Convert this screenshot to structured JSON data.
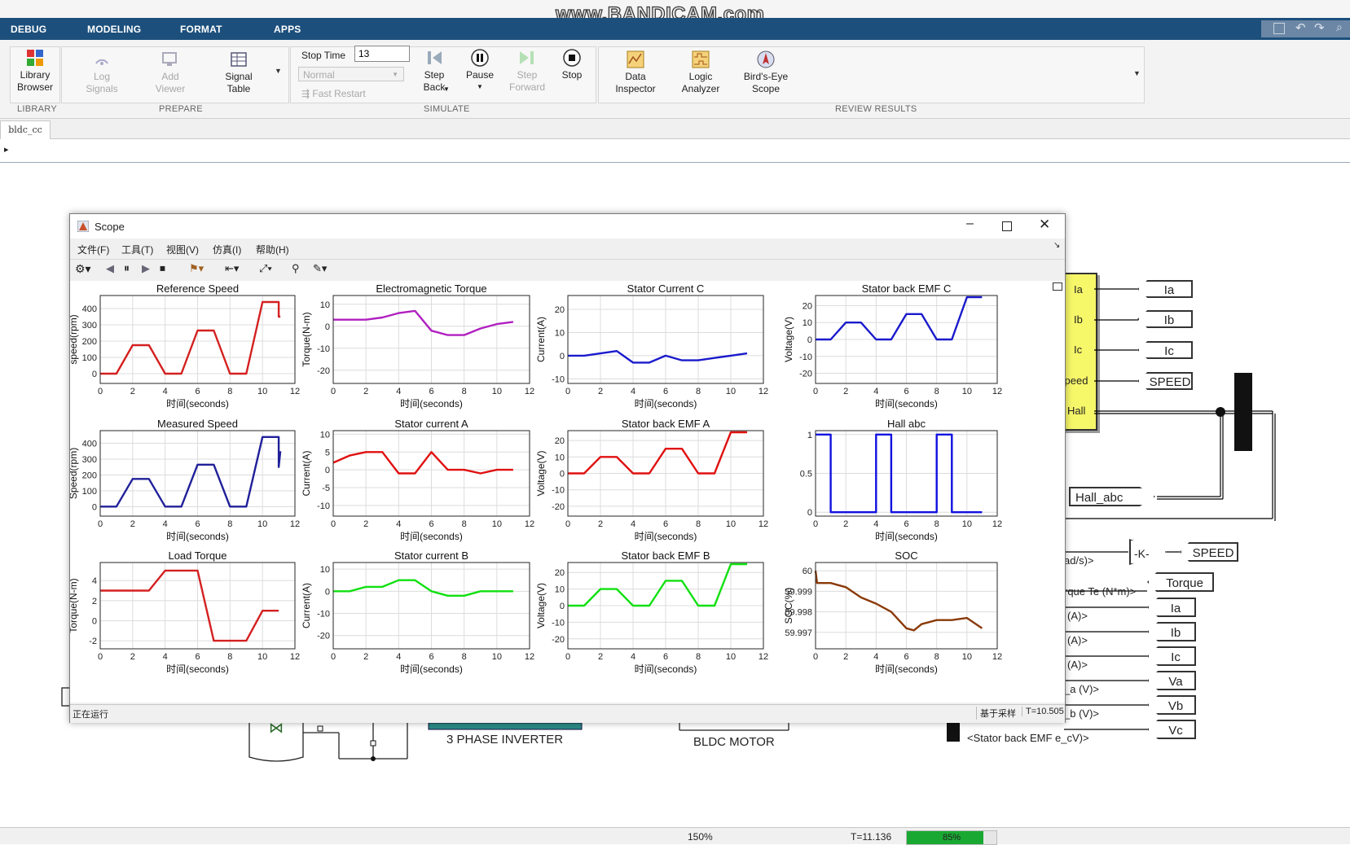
{
  "ribbon": {
    "tabs": [
      "DEBUG",
      "MODELING",
      "FORMAT",
      "APPS"
    ],
    "library_browser": "Library Browser",
    "log_signals": "Log Signals",
    "add_viewer": "Add Viewer",
    "signal_table": "Signal Table",
    "stop_time_label": "Stop Time",
    "stop_time_value": "13",
    "sim_mode": "Normal",
    "fast_restart": "Fast Restart",
    "step_back": "Step Back",
    "pause": "Pause",
    "step_forward": "Step Forward",
    "stop": "Stop",
    "data_inspector": "Data Inspector",
    "logic_analyzer": "Logic Analyzer",
    "birds_eye": "Bird's-Eye Scope",
    "groups": [
      "LIBRARY",
      "PREPARE",
      "SIMULATE",
      "REVIEW RESULTS"
    ]
  },
  "watermark": "www.BANDICAM.com",
  "model_tab": "bldc_cc",
  "scope": {
    "title": "Scope",
    "menu": [
      "文件(F)",
      "工具(T)",
      "视图(V)",
      "仿真(I)",
      "帮助(H)"
    ],
    "status_left": "正在运行",
    "status_mode": "基于采样",
    "status_time": "T=10.505"
  },
  "model": {
    "subsystem_ports": [
      "Ia",
      "Ib",
      "Ic",
      "speed",
      "Hall"
    ],
    "goto_tags": [
      "Ia",
      "Ib",
      "Ic",
      "SPEED"
    ],
    "hall_tag": "Hall_abc",
    "gain": "-K-",
    "speed_tag": "SPEED",
    "torque_tag": "Torque",
    "out_tags": [
      "Ia",
      "Ib",
      "Ic",
      "Va",
      "Vb",
      "Vc"
    ],
    "signal_labels": [
      "ad/s)>",
      "rque Te (N*m)>",
      "(A)>",
      "(A)>",
      "(A)>",
      "_a (V)>",
      "_b (V)>",
      "<Stator back EMF e_cV)>"
    ],
    "inverter": "3 PHASE INVERTER",
    "motor": "BLDC MOTOR"
  },
  "status_bar": {
    "zoom": "150%",
    "time": "T=11.136",
    "progress_text": "85%",
    "progress": 0.85
  },
  "chart_data": [
    {
      "type": "line",
      "title": "Reference Speed",
      "ylabel": "speed(rpm)",
      "xlabel": "时间(seconds)",
      "xlim": [
        0,
        12
      ],
      "ylim": [
        -60,
        480
      ],
      "yticks": [
        0,
        100,
        200,
        300,
        400
      ],
      "color": "#d42020",
      "series": [
        {
          "x": [
            0,
            1,
            2,
            3,
            4,
            5,
            6,
            7,
            8,
            9,
            10,
            11,
            11,
            11.1
          ],
          "values": [
            0,
            0,
            175,
            175,
            0,
            0,
            265,
            265,
            0,
            0,
            440,
            440,
            350,
            350
          ]
        }
      ]
    },
    {
      "type": "line",
      "title": "Electromagnetic Torque",
      "ylabel": "Torque(N-m)",
      "xlabel": "时间(seconds)",
      "xlim": [
        0,
        12
      ],
      "ylim": [
        -26,
        14
      ],
      "yticks": [
        -20,
        -10,
        0,
        10
      ],
      "color": "#b020c0",
      "series": [
        {
          "x": [
            0,
            1,
            2,
            3,
            4,
            5,
            6,
            7,
            8,
            9,
            10,
            11
          ],
          "values": [
            3,
            3,
            3,
            4,
            6,
            7,
            -2,
            -4,
            -4,
            -1,
            1,
            2
          ]
        }
      ]
    },
    {
      "type": "line",
      "title": "Stator Current C",
      "ylabel": "Current(A)",
      "xlabel": "时间(seconds)",
      "xlim": [
        0,
        12
      ],
      "ylim": [
        -12,
        26
      ],
      "yticks": [
        -10,
        0,
        10,
        20
      ],
      "color": "#1a1acc",
      "series": [
        {
          "x": [
            0,
            1,
            2,
            3,
            4,
            5,
            6,
            7,
            8,
            9,
            10,
            11
          ],
          "values": [
            0,
            0,
            1,
            2,
            -3,
            -3,
            0,
            -2,
            -2,
            -1,
            0,
            1
          ]
        }
      ]
    },
    {
      "type": "line",
      "title": "Stator back EMF C",
      "ylabel": "Voltage(V)",
      "xlabel": "时间(seconds)",
      "xlim": [
        0,
        12
      ],
      "ylim": [
        -26,
        26
      ],
      "yticks": [
        -20,
        -10,
        0,
        10,
        20
      ],
      "color": "#1a1acc",
      "series": [
        {
          "x": [
            0,
            1,
            2,
            3,
            4,
            5,
            6,
            7,
            8,
            9,
            10,
            11
          ],
          "values": [
            0,
            0,
            10,
            10,
            0,
            0,
            15,
            15,
            0,
            0,
            25,
            25
          ]
        }
      ]
    },
    {
      "type": "line",
      "title": "Measured Speed",
      "ylabel": "Speed(rpm)",
      "xlabel": "时间(seconds)",
      "xlim": [
        0,
        12
      ],
      "ylim": [
        -60,
        480
      ],
      "yticks": [
        0,
        100,
        200,
        300,
        400
      ],
      "color": "#20209a",
      "series": [
        {
          "x": [
            0,
            1,
            2,
            3,
            4,
            5,
            6,
            7,
            8,
            9,
            10,
            11,
            11,
            11.1
          ],
          "values": [
            0,
            0,
            175,
            175,
            0,
            0,
            265,
            265,
            0,
            0,
            440,
            440,
            250,
            350
          ]
        }
      ]
    },
    {
      "type": "line",
      "title": "Stator current A",
      "ylabel": "Current(A)",
      "xlabel": "时间(seconds)",
      "xlim": [
        0,
        12
      ],
      "ylim": [
        -13,
        11
      ],
      "yticks": [
        -10,
        -5,
        0,
        5,
        10
      ],
      "color": "#e01010",
      "series": [
        {
          "x": [
            0,
            1,
            2,
            3,
            4,
            5,
            6,
            7,
            8,
            9,
            10,
            11
          ],
          "values": [
            2,
            4,
            5,
            5,
            -1,
            -1,
            5,
            0,
            0,
            -1,
            0,
            0
          ]
        }
      ]
    },
    {
      "type": "line",
      "title": "Stator back EMF A",
      "ylabel": "Voltage(V)",
      "xlabel": "时间(seconds)",
      "xlim": [
        0,
        12
      ],
      "ylim": [
        -26,
        26
      ],
      "yticks": [
        -20,
        -10,
        0,
        10,
        20
      ],
      "color": "#e01010",
      "series": [
        {
          "x": [
            0,
            1,
            2,
            3,
            4,
            5,
            6,
            7,
            8,
            9,
            10,
            11
          ],
          "values": [
            0,
            0,
            10,
            10,
            0,
            0,
            15,
            15,
            0,
            0,
            25,
            25
          ]
        }
      ]
    },
    {
      "type": "line",
      "title": "Hall abc",
      "ylabel": "",
      "xlabel": "时间(seconds)",
      "xlim": [
        0,
        12
      ],
      "ylim": [
        -0.05,
        1.05
      ],
      "yticks": [
        0,
        0.5,
        1
      ],
      "color": "#1010e0",
      "series": [
        {
          "x": [
            0,
            1,
            1,
            4,
            4,
            5,
            5,
            8,
            8,
            9,
            9,
            11
          ],
          "values": [
            1,
            1,
            0,
            0,
            1,
            1,
            0,
            0,
            1,
            1,
            0,
            0
          ]
        }
      ]
    },
    {
      "type": "line",
      "title": "Load Torque",
      "ylabel": "Torque(N-m)",
      "xlabel": "时间(seconds)",
      "xlim": [
        0,
        12
      ],
      "ylim": [
        -2.8,
        5.8
      ],
      "yticks": [
        -2,
        0,
        2,
        4
      ],
      "color": "#d42020",
      "series": [
        {
          "x": [
            0,
            1,
            2,
            3,
            4,
            5,
            6,
            7,
            8,
            9,
            10,
            11
          ],
          "values": [
            3,
            3,
            3,
            3,
            5,
            5,
            5,
            -2,
            -2,
            -2,
            1,
            1
          ]
        }
      ]
    },
    {
      "type": "line",
      "title": "Stator current B",
      "ylabel": "Current(A)",
      "xlabel": "时间(seconds)",
      "xlim": [
        0,
        12
      ],
      "ylim": [
        -26,
        13
      ],
      "yticks": [
        -20,
        -10,
        0,
        10
      ],
      "color": "#10e010",
      "series": [
        {
          "x": [
            0,
            1,
            2,
            3,
            4,
            5,
            6,
            7,
            8,
            9,
            10,
            11
          ],
          "values": [
            0,
            0,
            2,
            2,
            5,
            5,
            0,
            -2,
            -2,
            0,
            0,
            0
          ]
        }
      ]
    },
    {
      "type": "line",
      "title": "Stator back EMF B",
      "ylabel": "Voltage(V)",
      "xlabel": "时间(seconds)",
      "xlim": [
        0,
        12
      ],
      "ylim": [
        -26,
        26
      ],
      "yticks": [
        -20,
        -10,
        0,
        10,
        20
      ],
      "color": "#10e010",
      "series": [
        {
          "x": [
            0,
            1,
            2,
            3,
            4,
            5,
            6,
            7,
            8,
            9,
            10,
            11
          ],
          "values": [
            0,
            0,
            10,
            10,
            0,
            0,
            15,
            15,
            0,
            0,
            25,
            25
          ]
        }
      ]
    },
    {
      "type": "line",
      "title": "SOC",
      "ylabel": "SOC(%)",
      "xlabel": "时间(seconds)",
      "xlim": [
        0,
        12
      ],
      "ylim": [
        59.9962,
        60.0004
      ],
      "yticks": [
        59.997,
        59.998,
        59.999,
        60
      ],
      "ytick_labels": [
        "59.997",
        "59.998",
        "59.999",
        "60"
      ],
      "color": "#8a3a08",
      "series": [
        {
          "x": [
            0,
            0.1,
            1,
            2,
            3,
            4,
            5,
            6,
            6.5,
            7,
            8,
            9,
            10,
            11
          ],
          "values": [
            60,
            59.9994,
            59.9994,
            59.9992,
            59.9987,
            59.9984,
            59.998,
            59.9972,
            59.9971,
            59.9974,
            59.9976,
            59.9976,
            59.9977,
            59.9972
          ]
        }
      ]
    }
  ]
}
